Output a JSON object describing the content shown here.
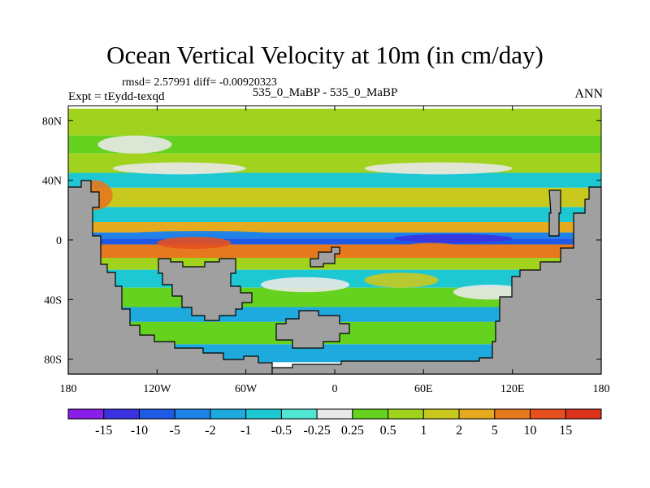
{
  "header": {
    "title": "Ocean Vertical Velocity at 10m (in cm/day)",
    "stats": "rmsd= 2.57991 diff= -0.00920323",
    "expt": "Expt = tEydd-texqd",
    "case_label": "535_0_MaBP - 535_0_MaBP",
    "season": "ANN"
  },
  "chart_data": {
    "type": "heatmap",
    "title": "Ocean Vertical Velocity at 10m (in cm/day)",
    "units": "cm/day",
    "x_ticks": [
      "180",
      "120W",
      "60W",
      "0",
      "60E",
      "120E",
      "180"
    ],
    "y_ticks": [
      "80N",
      "40N",
      "0",
      "40S",
      "80S"
    ],
    "x_range_deg": [
      -180,
      180
    ],
    "y_range_deg": [
      -90,
      90
    ],
    "colorbar_levels": [
      "-15",
      "-10",
      "-5",
      "-2",
      "-1",
      "-0.5",
      "-0.25",
      "0.25",
      "0.5",
      "1",
      "2",
      "5",
      "10",
      "15"
    ],
    "colorbar_colors": [
      "#8a1ee8",
      "#3a32e0",
      "#1e5ae6",
      "#1e82e6",
      "#1eaadc",
      "#1ec8d2",
      "#50e6d2",
      "#e8e8e8",
      "#64d21e",
      "#a0d21e",
      "#c8c81e",
      "#e6aa1e",
      "#e6781e",
      "#e6501e",
      "#dc321e"
    ],
    "land_color": "#a0a0a0",
    "zonal_bands": [
      {
        "lat": [
          70,
          88
        ],
        "value": 0.6
      },
      {
        "lat": [
          58,
          70
        ],
        "value": 0.3
      },
      {
        "lat": [
          45,
          58
        ],
        "value": 0.8
      },
      {
        "lat": [
          35,
          45
        ],
        "value": -0.6
      },
      {
        "lat": [
          22,
          35
        ],
        "value": 1.5
      },
      {
        "lat": [
          12,
          22
        ],
        "value": -0.8
      },
      {
        "lat": [
          5,
          12
        ],
        "value": 3
      },
      {
        "lat": [
          1,
          5
        ],
        "value": -2
      },
      {
        "lat": [
          -3,
          1
        ],
        "value": -8
      },
      {
        "lat": [
          -12,
          -3
        ],
        "value": 8
      },
      {
        "lat": [
          -20,
          -12
        ],
        "value": 0.6
      },
      {
        "lat": [
          -32,
          -20
        ],
        "value": -0.5
      },
      {
        "lat": [
          -45,
          -32
        ],
        "value": 0.4
      },
      {
        "lat": [
          -55,
          -45
        ],
        "value": -1
      },
      {
        "lat": [
          -70,
          -55
        ],
        "value": 0.5
      },
      {
        "lat": [
          -82,
          -70
        ],
        "value": -1.5
      }
    ],
    "patches": [
      {
        "lon": [
          -150,
          -60
        ],
        "lat": [
          44,
          52
        ],
        "value": 0.1
      },
      {
        "lon": [
          -160,
          -110
        ],
        "lat": [
          58,
          70
        ],
        "value": 0.1
      },
      {
        "lon": [
          20,
          120
        ],
        "lat": [
          44,
          52
        ],
        "value": 0.1
      },
      {
        "lon": [
          -50,
          10
        ],
        "lat": [
          -35,
          -25
        ],
        "value": 0.1
      },
      {
        "lon": [
          40,
          90
        ],
        "lat": [
          -12,
          -2
        ],
        "value": 10
      },
      {
        "lon": [
          -120,
          -70
        ],
        "lat": [
          -6,
          2
        ],
        "value": 12
      },
      {
        "lon": [
          40,
          120
        ],
        "lat": [
          -2,
          4
        ],
        "value": -10
      },
      {
        "lon": [
          -140,
          -40
        ],
        "lat": [
          2,
          6
        ],
        "value": -4
      },
      {
        "lon": [
          20,
          70
        ],
        "lat": [
          -32,
          -22
        ],
        "value": 2
      },
      {
        "lon": [
          80,
          130
        ],
        "lat": [
          -40,
          -30
        ],
        "value": 0.1
      },
      {
        "lon": [
          -175,
          -150
        ],
        "lat": [
          20,
          40
        ],
        "value": 6
      }
    ]
  }
}
